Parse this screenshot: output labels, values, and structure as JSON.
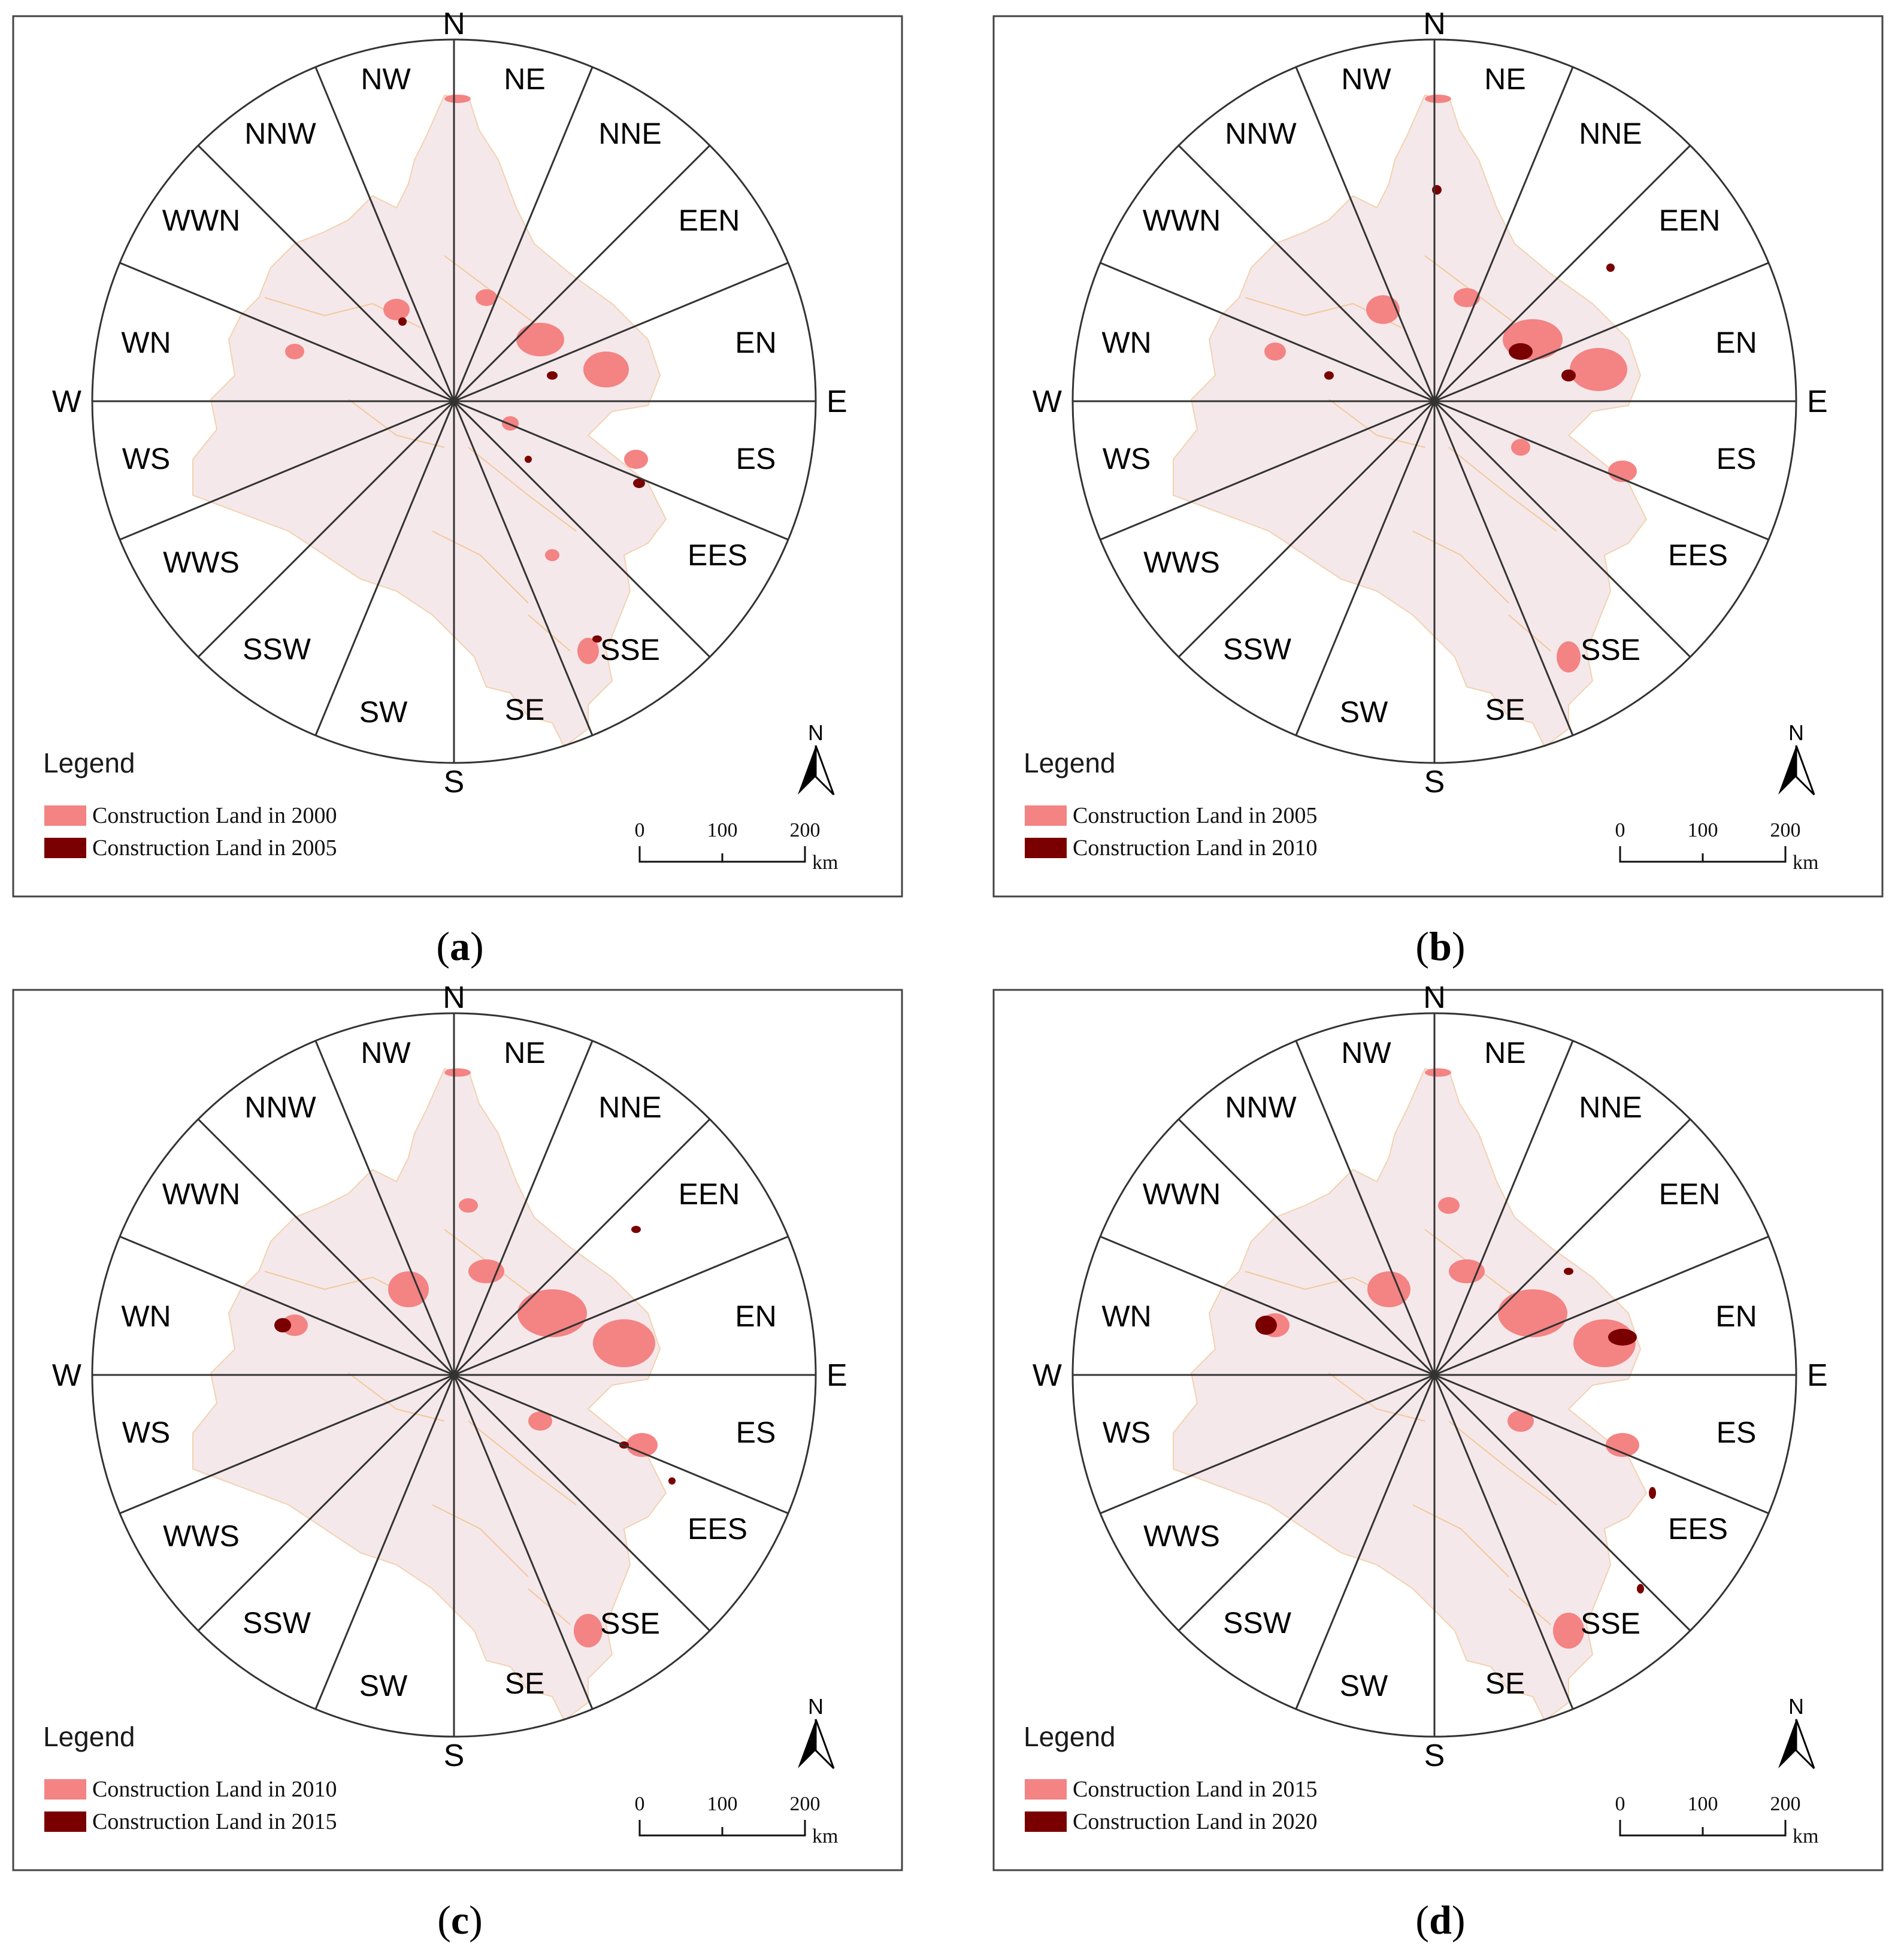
{
  "figure": {
    "panels": [
      {
        "id": "a",
        "caption_letter": "a",
        "legend": {
          "title": "Legend",
          "items": [
            {
              "label": "Construction Land in 2000",
              "color": "#f48383"
            },
            {
              "label": "Construction Land in 2005",
              "color": "#7a0000"
            }
          ]
        }
      },
      {
        "id": "b",
        "caption_letter": "b",
        "legend": {
          "title": "Legend",
          "items": [
            {
              "label": "Construction Land in 2005",
              "color": "#f48383"
            },
            {
              "label": "Construction Land in 2010",
              "color": "#7a0000"
            }
          ]
        }
      },
      {
        "id": "c",
        "caption_letter": "c",
        "legend": {
          "title": "Legend",
          "items": [
            {
              "label": "Construction Land in 2010",
              "color": "#f48383"
            },
            {
              "label": "Construction Land in 2015",
              "color": "#7a0000"
            }
          ]
        }
      },
      {
        "id": "d",
        "caption_letter": "d",
        "legend": {
          "title": "Legend",
          "items": [
            {
              "label": "Construction Land in 2015",
              "color": "#f48383"
            },
            {
              "label": "Construction Land in 2020",
              "color": "#7a0000"
            }
          ]
        }
      }
    ],
    "cardinals": {
      "n": "N",
      "e": "E",
      "s": "S",
      "w": "W"
    },
    "sectors": [
      "NE",
      "NNE",
      "EEN",
      "EN",
      "ES",
      "EES",
      "SSE",
      "SE",
      "SW",
      "SSW",
      "WWS",
      "WS",
      "WN",
      "WWN",
      "NNW",
      "NW"
    ],
    "north_arrow_label": "N",
    "scale_bar": {
      "ticks": [
        "0",
        "100",
        "200"
      ],
      "unit": "km"
    },
    "colors": {
      "earlier_land": "#f48383",
      "later_land": "#7a0000",
      "base_map": "#f5e6e8",
      "boundary": "#f2c89a"
    }
  }
}
